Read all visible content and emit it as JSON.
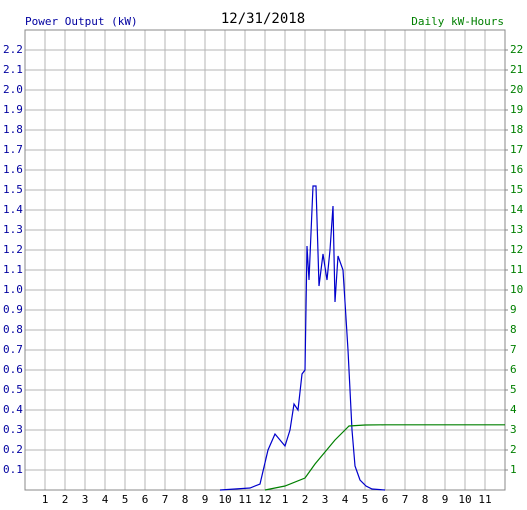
{
  "chart_data": {
    "type": "line",
    "title": "12/31/2018",
    "y_label": "Power Output (kW)",
    "y2_label": "Daily kW-Hours",
    "xlim": [
      0,
      24
    ],
    "xticks": [
      1,
      2,
      3,
      4,
      5,
      6,
      7,
      8,
      9,
      10,
      11,
      12,
      {
        "value": 13,
        "label": "1"
      },
      {
        "value": 14,
        "label": "2"
      },
      {
        "value": 15,
        "label": "3"
      },
      {
        "value": 16,
        "label": "4"
      },
      {
        "value": 17,
        "label": "5"
      },
      {
        "value": 18,
        "label": "6"
      },
      {
        "value": 19,
        "label": "7"
      },
      {
        "value": 20,
        "label": "8"
      },
      {
        "value": 21,
        "label": "9"
      },
      {
        "value": 22,
        "label": "10"
      },
      {
        "value": 23,
        "label": "11"
      }
    ],
    "ylim": [
      0,
      2.3
    ],
    "yticks": [
      0.1,
      0.2,
      0.3,
      0.4,
      0.5,
      0.6,
      0.7,
      0.8,
      0.9,
      {
        "value": 1,
        "label": "1.0"
      },
      1.1,
      1.2,
      1.3,
      1.4,
      1.5,
      1.6,
      1.7,
      1.8,
      1.9,
      {
        "value": 2,
        "label": "2.0"
      },
      2.1,
      2.2
    ],
    "y2lim": [
      0,
      23
    ],
    "y2ticks": [
      1,
      2,
      3,
      4,
      5,
      6,
      7,
      8,
      9,
      10,
      11,
      12,
      13,
      14,
      15,
      16,
      17,
      18,
      19,
      20,
      21,
      22
    ],
    "grid": true,
    "y_color": "#0000a0",
    "y2_color": "#008000",
    "series": [
      {
        "name": "Power Output (kW)",
        "color": "#0000cc",
        "axis": "y",
        "x": [
          9.75,
          11.25,
          11.75,
          12.15,
          12.5,
          12.75,
          13,
          13.25,
          13.45,
          13.65,
          13.85,
          14,
          14.1,
          14.2,
          14.4,
          14.55,
          14.7,
          14.9,
          15.1,
          15.25,
          15.4,
          15.5,
          15.65,
          15.9,
          16.15,
          16.35,
          16.5,
          16.75,
          17.05,
          17.35,
          18
        ],
        "values": [
          0,
          0.01,
          0.03,
          0.2,
          0.28,
          0.25,
          0.22,
          0.3,
          0.43,
          0.4,
          0.58,
          0.6,
          1.22,
          1.05,
          1.52,
          1.52,
          1.02,
          1.18,
          1.05,
          1.2,
          1.42,
          0.94,
          1.17,
          1.1,
          0.7,
          0.3,
          0.12,
          0.05,
          0.02,
          0.005,
          0
        ]
      },
      {
        "name": "Daily kW-Hours",
        "color": "#008000",
        "axis": "y2",
        "x": [
          12,
          13,
          14,
          14.5,
          15,
          15.5,
          16,
          16.2,
          17,
          18,
          24
        ],
        "values": [
          0,
          0.2,
          0.6,
          1.3,
          1.9,
          2.5,
          3.0,
          3.2,
          3.25,
          3.26,
          3.26
        ]
      }
    ]
  }
}
